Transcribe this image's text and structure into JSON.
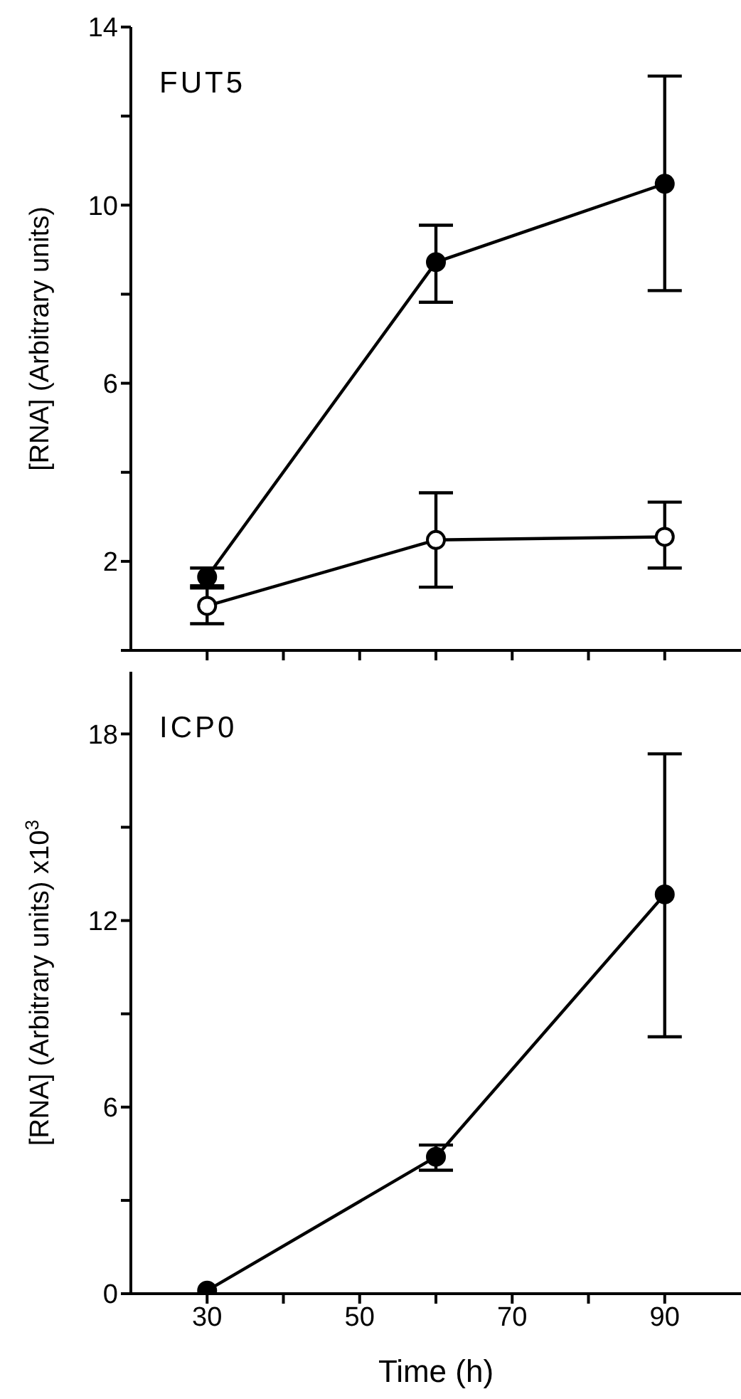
{
  "chart_data": [
    {
      "type": "line",
      "title": "FUT5",
      "ylabel": "[RNA] (Arbitrary units)",
      "x": [
        30,
        60,
        90
      ],
      "xlim": [
        20,
        100
      ],
      "xticks": [
        {
          "value": 30,
          "label": null
        },
        {
          "value": 40,
          "label": null
        },
        {
          "value": 50,
          "label": null
        },
        {
          "value": 60,
          "label": null
        },
        {
          "value": 70,
          "label": null
        },
        {
          "value": 80,
          "label": null
        },
        {
          "value": 90,
          "label": null
        }
      ],
      "ylim": [
        0,
        14
      ],
      "yticks": [
        {
          "value": 0,
          "label": null
        },
        2,
        {
          "value": 4,
          "label": null
        },
        6,
        {
          "value": 8,
          "label": null
        },
        10,
        {
          "value": 12,
          "label": null
        },
        14
      ],
      "tick_labels": "y",
      "marker": "circle",
      "line_style": "solid",
      "grid": false,
      "legend": false,
      "series": [
        {
          "color": "#000000",
          "values": [
            1.65,
            8.72,
            10.48
          ],
          "errors": [
            0.2,
            [
              7.82,
              9.55
            ],
            [
              8.08,
              12.9
            ]
          ]
        },
        {
          "color": "#ffffff",
          "values": [
            1.0,
            2.48,
            2.55
          ],
          "errors": [
            [
              0.6,
              1.4
            ],
            [
              1.42,
              3.54
            ],
            [
              1.85,
              3.33
            ]
          ]
        }
      ]
    },
    {
      "type": "line",
      "title": "ICP0",
      "ylabel": "[RNA] (Arbitrary units) x10$^{3}$",
      "xlabel": "Time (h)",
      "x": [
        30,
        60,
        90
      ],
      "xlim": [
        20,
        100
      ],
      "xticks": [
        30,
        {
          "value": 40,
          "label": null
        },
        50,
        {
          "value": 60,
          "label": null
        },
        70,
        {
          "value": 80,
          "label": null
        },
        90
      ],
      "ylim": [
        0,
        20
      ],
      "yticks": [
        0,
        {
          "value": 3,
          "label": null
        },
        6,
        {
          "value": 9,
          "label": null
        },
        12,
        {
          "value": 15,
          "label": null
        },
        18
      ],
      "marker": "circle",
      "line_style": "solid",
      "grid": false,
      "legend": false,
      "series": [
        {
          "color": "#000000",
          "values": [
            0.1,
            4.4,
            12.84
          ],
          "errors": [
            null,
            [
              3.97,
              4.78
            ],
            [
              8.26,
              17.36
            ]
          ]
        }
      ]
    }
  ]
}
